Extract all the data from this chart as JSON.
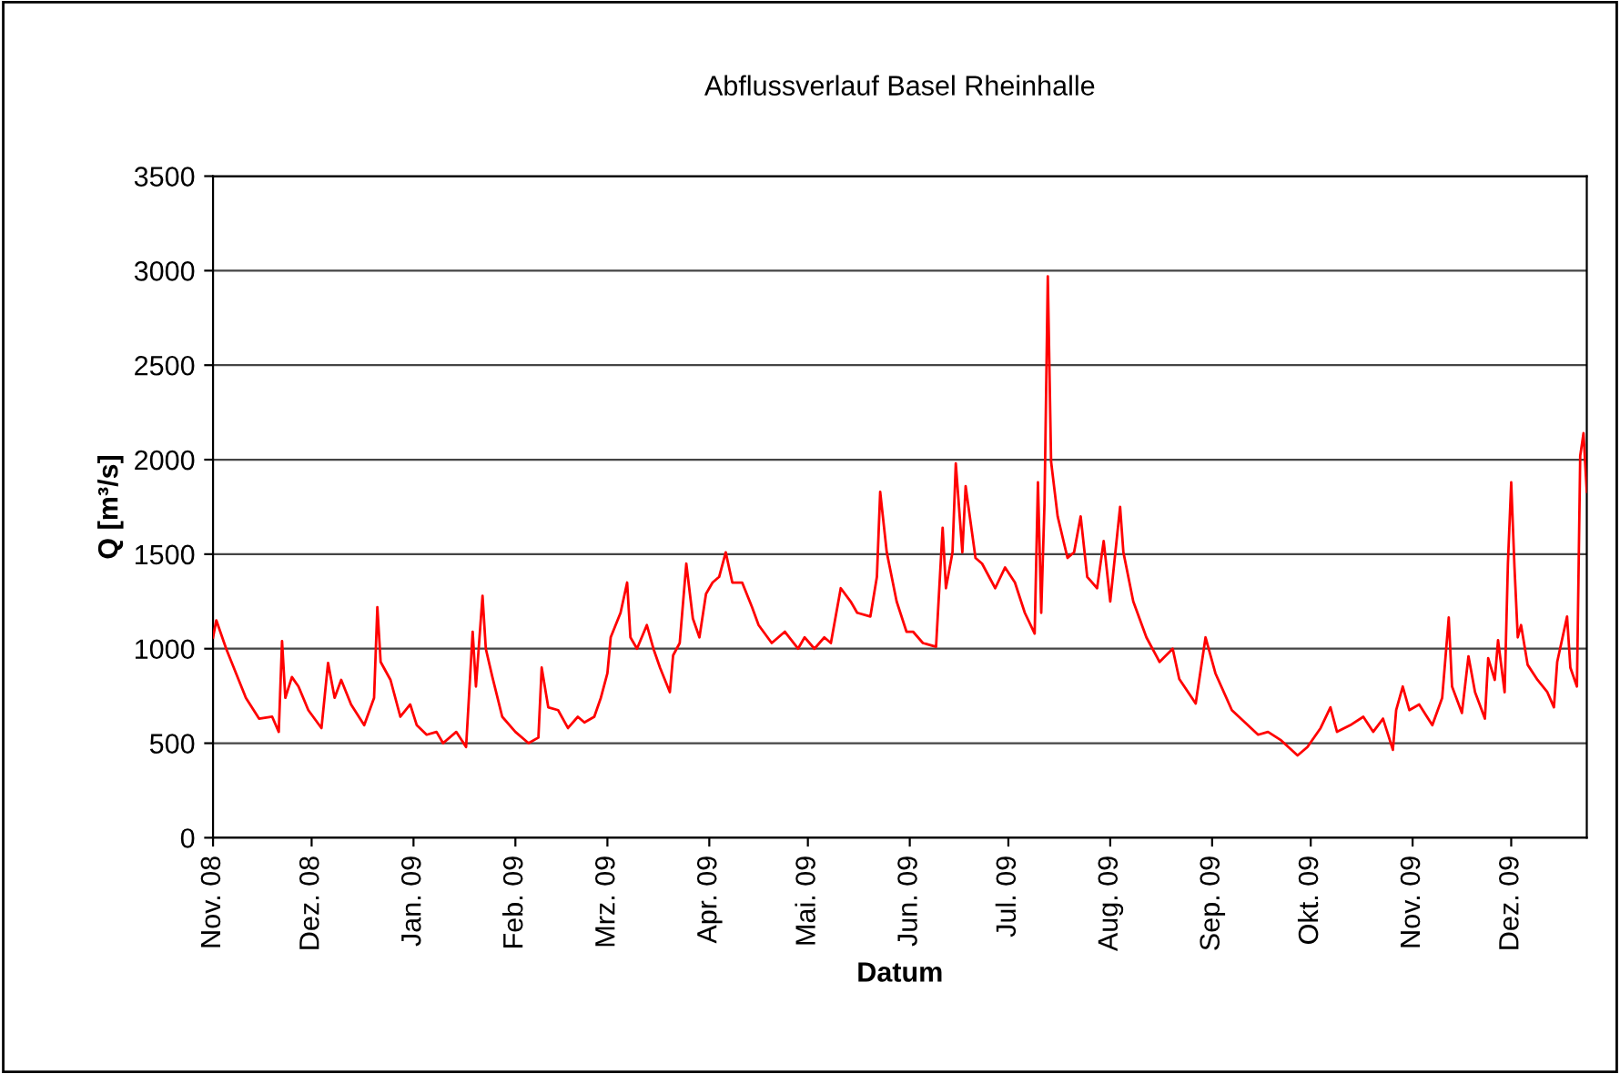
{
  "chart_data": {
    "type": "line",
    "title": "Abflussverlauf Basel Rheinhalle",
    "xlabel": "Datum",
    "ylabel": "Q [m³/s]",
    "x": [
      "2008-11-01",
      "2008-11-02",
      "2008-11-05",
      "2008-11-08",
      "2008-11-11",
      "2008-11-15",
      "2008-11-19",
      "2008-11-21",
      "2008-11-22",
      "2008-11-23",
      "2008-11-25",
      "2008-11-27",
      "2008-11-30",
      "2008-12-04",
      "2008-12-06",
      "2008-12-08",
      "2008-12-10",
      "2008-12-13",
      "2008-12-17",
      "2008-12-20",
      "2008-12-21",
      "2008-12-22",
      "2008-12-25",
      "2008-12-28",
      "2008-12-31",
      "2009-01-02",
      "2009-01-05",
      "2009-01-08",
      "2009-01-10",
      "2009-01-14",
      "2009-01-17",
      "2009-01-19",
      "2009-01-20",
      "2009-01-22",
      "2009-01-23",
      "2009-01-25",
      "2009-01-28",
      "2009-02-01",
      "2009-02-05",
      "2009-02-08",
      "2009-02-09",
      "2009-02-11",
      "2009-02-14",
      "2009-02-17",
      "2009-02-20",
      "2009-02-22",
      "2009-02-25",
      "2009-02-27",
      "2009-03-01",
      "2009-03-02",
      "2009-03-05",
      "2009-03-07",
      "2009-03-08",
      "2009-03-10",
      "2009-03-13",
      "2009-03-15",
      "2009-03-17",
      "2009-03-20",
      "2009-03-21",
      "2009-03-23",
      "2009-03-25",
      "2009-03-27",
      "2009-03-29",
      "2009-03-31",
      "2009-04-02",
      "2009-04-04",
      "2009-04-06",
      "2009-04-08",
      "2009-04-11",
      "2009-04-14",
      "2009-04-16",
      "2009-04-20",
      "2009-04-24",
      "2009-04-28",
      "2009-04-30",
      "2009-05-03",
      "2009-05-06",
      "2009-05-08",
      "2009-05-11",
      "2009-05-14",
      "2009-05-16",
      "2009-05-20",
      "2009-05-22",
      "2009-05-23",
      "2009-05-25",
      "2009-05-28",
      "2009-05-31",
      "2009-06-02",
      "2009-06-05",
      "2009-06-09",
      "2009-06-11",
      "2009-06-12",
      "2009-06-14",
      "2009-06-15",
      "2009-06-17",
      "2009-06-18",
      "2009-06-21",
      "2009-06-23",
      "2009-06-27",
      "2009-06-30",
      "2009-07-03",
      "2009-07-06",
      "2009-07-09",
      "2009-07-10",
      "2009-07-11",
      "2009-07-12",
      "2009-07-13",
      "2009-07-14",
      "2009-07-16",
      "2009-07-19",
      "2009-07-21",
      "2009-07-23",
      "2009-07-25",
      "2009-07-28",
      "2009-07-30",
      "2009-08-01",
      "2009-08-04",
      "2009-08-05",
      "2009-08-08",
      "2009-08-12",
      "2009-08-16",
      "2009-08-20",
      "2009-08-22",
      "2009-08-27",
      "2009-08-30",
      "2009-09-02",
      "2009-09-07",
      "2009-09-11",
      "2009-09-15",
      "2009-09-18",
      "2009-09-22",
      "2009-09-27",
      "2009-09-30",
      "2009-10-04",
      "2009-10-07",
      "2009-10-09",
      "2009-10-13",
      "2009-10-17",
      "2009-10-20",
      "2009-10-23",
      "2009-10-26",
      "2009-10-27",
      "2009-10-29",
      "2009-10-31",
      "2009-11-03",
      "2009-11-07",
      "2009-11-10",
      "2009-11-12",
      "2009-11-13",
      "2009-11-16",
      "2009-11-18",
      "2009-11-20",
      "2009-11-23",
      "2009-11-24",
      "2009-11-26",
      "2009-11-27",
      "2009-11-29",
      "2009-11-30",
      "2009-12-01",
      "2009-12-02",
      "2009-12-03",
      "2009-12-04",
      "2009-12-06",
      "2009-12-09",
      "2009-12-12",
      "2009-12-14",
      "2009-12-15",
      "2009-12-18",
      "2009-12-19",
      "2009-12-21",
      "2009-12-22",
      "2009-12-23",
      "2009-12-24"
    ],
    "series": [
      {
        "color": "#ff0000",
        "values": [
          1060,
          1150,
          1000,
          870,
          740,
          630,
          640,
          560,
          1040,
          740,
          850,
          800,
          675,
          580,
          925,
          740,
          835,
          705,
          595,
          740,
          1220,
          930,
          835,
          640,
          705,
          595,
          545,
          560,
          500,
          560,
          480,
          1090,
          800,
          1280,
          1000,
          850,
          640,
          560,
          500,
          530,
          900,
          690,
          675,
          580,
          640,
          610,
          640,
          740,
          870,
          1060,
          1190,
          1350,
          1060,
          1000,
          1125,
          1000,
          900,
          770,
          965,
          1030,
          1450,
          1160,
          1060,
          1290,
          1350,
          1380,
          1510,
          1350,
          1350,
          1220,
          1125,
          1030,
          1090,
          1000,
          1060,
          1000,
          1060,
          1030,
          1320,
          1250,
          1190,
          1170,
          1380,
          1830,
          1510,
          1250,
          1090,
          1090,
          1030,
          1010,
          1640,
          1320,
          1510,
          1980,
          1510,
          1860,
          1480,
          1450,
          1320,
          1430,
          1350,
          1190,
          1080,
          1880,
          1190,
          1770,
          2970,
          1990,
          1700,
          1480,
          1510,
          1700,
          1380,
          1320,
          1570,
          1250,
          1750,
          1510,
          1250,
          1060,
          930,
          1000,
          840,
          710,
          1060,
          870,
          675,
          610,
          545,
          560,
          515,
          435,
          480,
          580,
          690,
          560,
          595,
          640,
          560,
          630,
          465,
          675,
          800,
          675,
          705,
          595,
          740,
          1165,
          800,
          660,
          960,
          770,
          630,
          950,
          835,
          1045,
          770,
          1450,
          1880,
          1430,
          1060,
          1125,
          915,
          835,
          770,
          690,
          930,
          1170,
          900,
          800,
          2020,
          2140,
          1830
        ]
      }
    ],
    "xlim": [
      "2008-11-01",
      "2009-12-24"
    ],
    "xticks": [
      {
        "value": "2008-11-01",
        "label": "Nov. 08"
      },
      {
        "value": "2008-12-01",
        "label": "Dez. 08"
      },
      {
        "value": "2009-01-01",
        "label": "Jan. 09"
      },
      {
        "value": "2009-02-01",
        "label": "Feb. 09"
      },
      {
        "value": "2009-03-01",
        "label": "Mrz. 09"
      },
      {
        "value": "2009-04-01",
        "label": "Apr. 09"
      },
      {
        "value": "2009-05-01",
        "label": "Mai. 09"
      },
      {
        "value": "2009-06-01",
        "label": "Jun. 09"
      },
      {
        "value": "2009-07-01",
        "label": "Jul. 09"
      },
      {
        "value": "2009-08-01",
        "label": "Aug. 09"
      },
      {
        "value": "2009-09-01",
        "label": "Sep. 09"
      },
      {
        "value": "2009-10-01",
        "label": "Okt. 09"
      },
      {
        "value": "2009-11-01",
        "label": "Nov. 09"
      },
      {
        "value": "2009-12-01",
        "label": "Dez. 09"
      }
    ],
    "ylim": [
      0,
      3500
    ],
    "yticks": [
      0,
      500,
      1000,
      1500,
      2000,
      2500,
      3000,
      3500
    ],
    "grid": "y",
    "marker": "none",
    "line_style": "solid"
  }
}
